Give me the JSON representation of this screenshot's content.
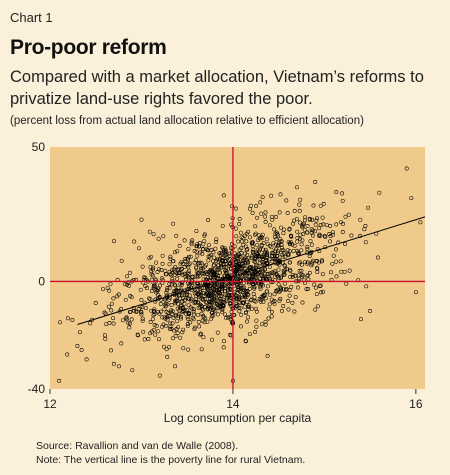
{
  "header": {
    "chart_label": "Chart 1",
    "title": "Pro-poor reform",
    "subtitle": "Compared with a market allocation, Vietnam’s reforms to privatize land-use rights favored the poor.",
    "unit_note": "(percent loss from actual land allocation relative to efficient allocation)"
  },
  "footer": {
    "source": "Source: Ravallion and van de Walle (2008).",
    "note": "Note: The vertical line is the poverty line for rural Vietnam."
  },
  "colors": {
    "panel_background": "#fbf0d9",
    "plot_background": "#f0ca8a",
    "reference_lines": "#c8102e",
    "points": "#000000",
    "trend_line": "#000000"
  },
  "chart_data": {
    "type": "scatter",
    "xlabel": "Log consumption per capita",
    "ylabel": "",
    "xlim": [
      12,
      16.1
    ],
    "ylim": [
      -40,
      50
    ],
    "x_ticks": [
      "12",
      "14",
      "16"
    ],
    "y_ticks": [
      "50",
      "0",
      "-40"
    ],
    "grid": false,
    "reference_lines": {
      "vertical_x": 14,
      "horizontal_y": 0
    },
    "trend_line": {
      "x": [
        12.3,
        16.1
      ],
      "y": [
        -16,
        24
      ]
    },
    "point_distribution": {
      "count": 1500,
      "x_mean": 13.95,
      "x_sd": 0.55,
      "noise_sd": 9,
      "x_min": 12.1,
      "x_max": 16.1
    },
    "points": [
      {
        "x": 12.1,
        "y": -37
      },
      {
        "x": 12.3,
        "y": -24
      },
      {
        "x": 12.4,
        "y": -29
      },
      {
        "x": 12.5,
        "y": -8
      },
      {
        "x": 12.6,
        "y": -20
      },
      {
        "x": 12.7,
        "y": 15
      },
      {
        "x": 12.9,
        "y": -33
      },
      {
        "x": 13.0,
        "y": 23
      },
      {
        "x": 13.2,
        "y": -35
      },
      {
        "x": 13.9,
        "y": 32
      },
      {
        "x": 14.0,
        "y": -37
      },
      {
        "x": 14.7,
        "y": 35
      },
      {
        "x": 14.9,
        "y": 37
      },
      {
        "x": 15.2,
        "y": 30
      },
      {
        "x": 15.4,
        "y": -14
      },
      {
        "x": 15.5,
        "y": -11
      },
      {
        "x": 15.6,
        "y": 33
      },
      {
        "x": 15.9,
        "y": 42
      },
      {
        "x": 15.95,
        "y": 31
      },
      {
        "x": 16.05,
        "y": 22
      },
      {
        "x": 16.0,
        "y": -4
      }
    ]
  }
}
